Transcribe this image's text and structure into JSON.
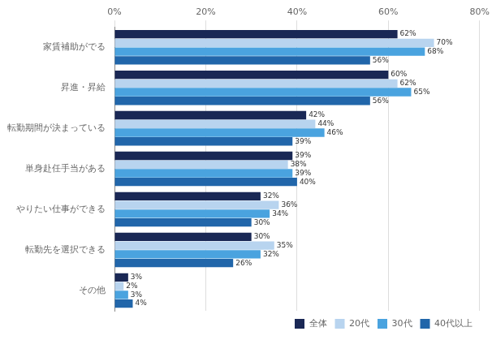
{
  "chart_data": {
    "type": "bar",
    "orientation": "horizontal",
    "categories": [
      "家賃補助がでる",
      "昇進・昇給",
      "転勤期間が決まっている",
      "単身赴任手当がある",
      "やりたい仕事ができる",
      "転勤先を選択できる",
      "その他"
    ],
    "series": [
      {
        "name": "全体",
        "color": "#1a2855",
        "values": [
          62,
          60,
          42,
          39,
          32,
          30,
          3
        ],
        "value_labels": [
          "62%",
          "60%",
          "42%",
          "39%",
          "32%",
          "30%",
          "3%"
        ]
      },
      {
        "name": "20代",
        "color": "#b8d4ef",
        "values": [
          70,
          62,
          44,
          38,
          36,
          35,
          2
        ],
        "value_labels": [
          "70%",
          "62%",
          "44%",
          "38%",
          "36%",
          "35%",
          "2%"
        ]
      },
      {
        "name": "30代",
        "color": "#4aa3df",
        "values": [
          68,
          65,
          46,
          39,
          34,
          32,
          3
        ],
        "value_labels": [
          "68%",
          "65%",
          "46%",
          "39%",
          "34%",
          "32%",
          "3%"
        ]
      },
      {
        "name": "40代以上",
        "color": "#2166aa",
        "values": [
          56,
          56,
          39,
          40,
          30,
          26,
          4
        ],
        "value_labels": [
          "56%",
          "56%",
          "39%",
          "40%",
          "30%",
          "26%",
          "4%"
        ]
      }
    ],
    "xlim": [
      0,
      80
    ],
    "xticks": [
      {
        "value": 0,
        "label": "0%"
      },
      {
        "value": 20,
        "label": "20%"
      },
      {
        "value": 40,
        "label": "40%"
      },
      {
        "value": 60,
        "label": "60%"
      },
      {
        "value": 80,
        "label": "80%"
      }
    ],
    "grid": true,
    "legend": "lower right",
    "data_labels": true
  }
}
